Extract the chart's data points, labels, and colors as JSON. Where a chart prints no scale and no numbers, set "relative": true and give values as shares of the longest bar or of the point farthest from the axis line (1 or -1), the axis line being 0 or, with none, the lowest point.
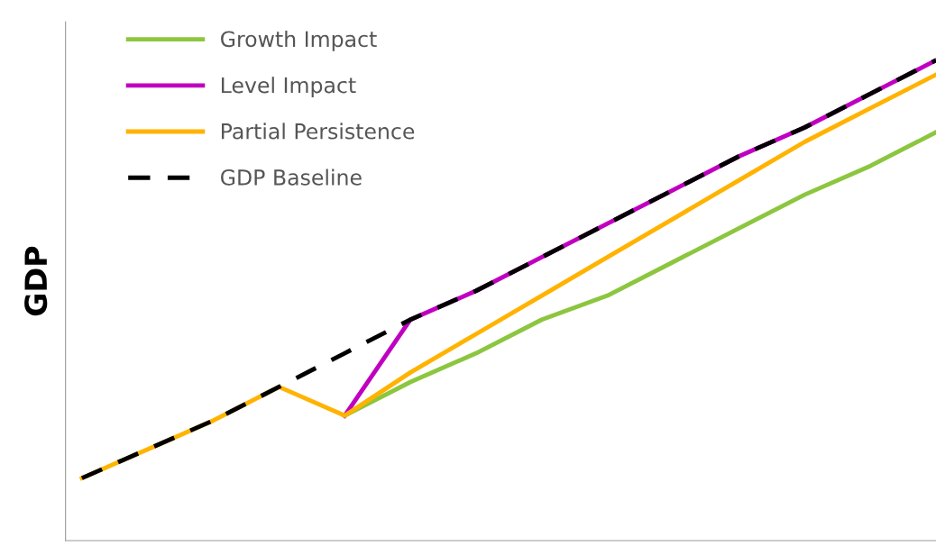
{
  "chart_data": {
    "type": "line",
    "relative": true,
    "ylabel": "GDP",
    "categories": [
      null,
      null,
      null,
      null,
      null,
      null,
      null,
      null,
      null,
      null,
      null,
      null,
      null,
      null
    ],
    "series": [
      {
        "name": "Growth Impact",
        "color": "#8cc63f",
        "values": [
          null,
          null,
          null,
          null,
          0.26,
          0.33,
          0.39,
          0.46,
          0.51,
          0.58,
          0.65,
          0.72,
          0.78,
          0.85
        ]
      },
      {
        "name": "Level Impact",
        "color": "#c000c0",
        "values": [
          null,
          null,
          null,
          null,
          0.26,
          0.46,
          0.52,
          0.59,
          0.66,
          0.73,
          0.8,
          0.86,
          0.93,
          1.0
        ]
      },
      {
        "name": "Partial Persistence",
        "color": "#ffb300",
        "values": [
          0.13,
          0.19,
          0.25,
          0.32,
          0.26,
          0.35,
          0.43,
          0.51,
          0.59,
          0.67,
          0.75,
          0.83,
          0.9,
          0.97
        ]
      },
      {
        "name": "GDP Baseline",
        "color": "#000000",
        "line_style": "dashed",
        "values": [
          0.13,
          0.19,
          0.25,
          0.32,
          0.39,
          0.46,
          0.52,
          0.59,
          0.66,
          0.73,
          0.8,
          0.86,
          0.93,
          1.0
        ]
      }
    ],
    "legend": "top left",
    "marker": "none",
    "line_style": "solid"
  }
}
